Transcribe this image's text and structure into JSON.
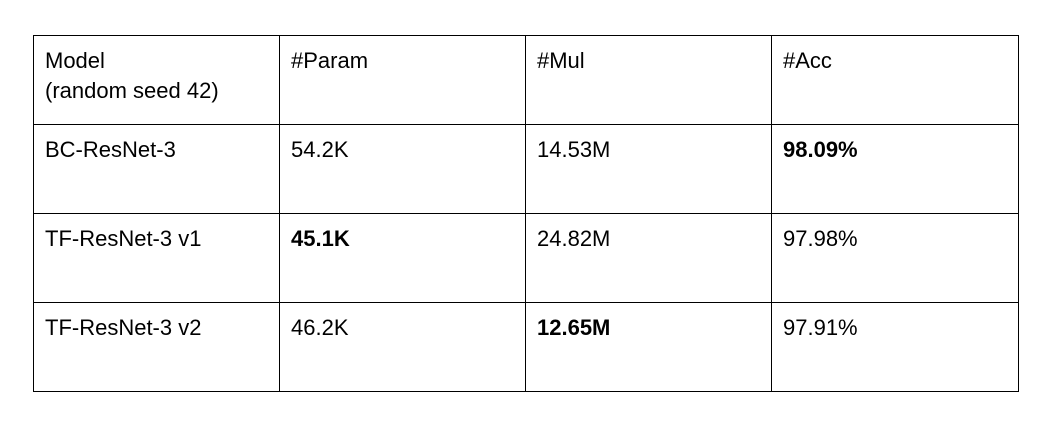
{
  "table": {
    "header": {
      "model_line1": "Model",
      "model_line2": "(random seed 42)",
      "param": "#Param",
      "mul": "#Mul",
      "acc": "#Acc"
    },
    "rows": [
      {
        "model": "BC-ResNet-3",
        "param": "54.2K",
        "mul": "14.53M",
        "acc": "98.09%",
        "bold": [
          "acc"
        ]
      },
      {
        "model": "TF-ResNet-3 v1",
        "param": "45.1K",
        "mul": "24.82M",
        "acc": "97.98%",
        "bold": [
          "param"
        ]
      },
      {
        "model": "TF-ResNet-3 v2",
        "param": "46.2K",
        "mul": "12.65M",
        "acc": "97.91%",
        "bold": [
          "mul"
        ]
      }
    ]
  }
}
